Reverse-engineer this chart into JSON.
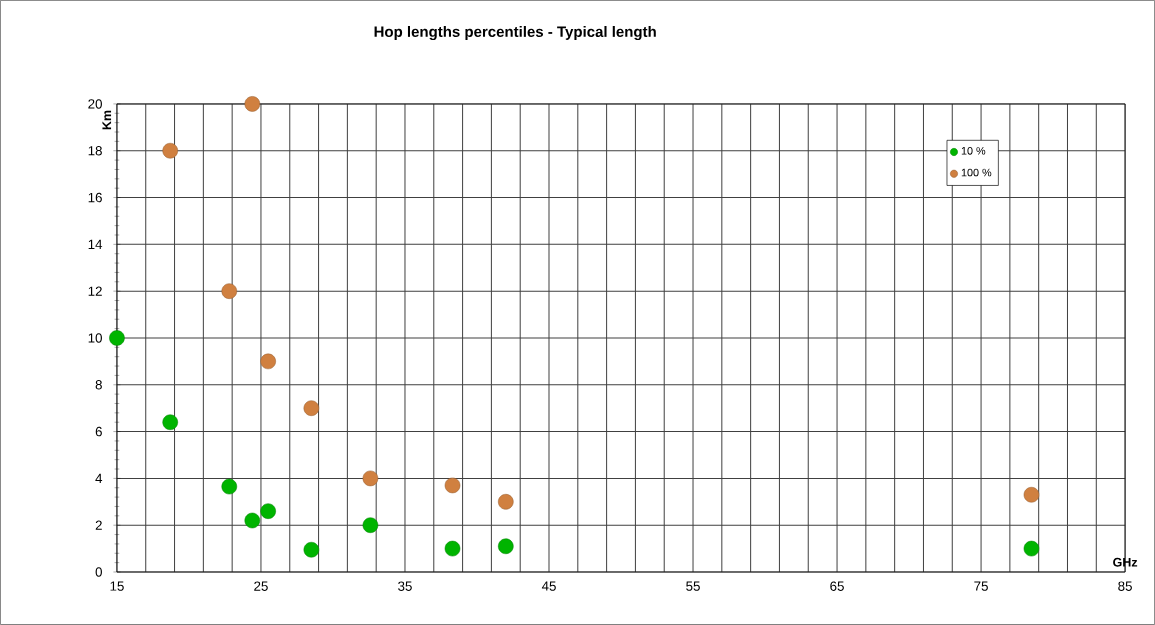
{
  "chart_data": {
    "type": "scatter",
    "title": "Hop lengths percentiles - Typical length",
    "xlabel": "GHz",
    "ylabel": "Km",
    "xlim": [
      15,
      85
    ],
    "xticks": [
      15,
      {
        "value": 17,
        "label": null
      },
      {
        "value": 19,
        "label": null
      },
      {
        "value": 21,
        "label": null
      },
      {
        "value": 23,
        "label": null
      },
      25,
      {
        "value": 27,
        "label": null
      },
      {
        "value": 29,
        "label": null
      },
      {
        "value": 31,
        "label": null
      },
      {
        "value": 33,
        "label": null
      },
      35,
      {
        "value": 37,
        "label": null
      },
      {
        "value": 39,
        "label": null
      },
      {
        "value": 41,
        "label": null
      },
      {
        "value": 43,
        "label": null
      },
      45,
      {
        "value": 47,
        "label": null
      },
      {
        "value": 49,
        "label": null
      },
      {
        "value": 51,
        "label": null
      },
      {
        "value": 53,
        "label": null
      },
      55,
      {
        "value": 57,
        "label": null
      },
      {
        "value": 59,
        "label": null
      },
      {
        "value": 61,
        "label": null
      },
      {
        "value": 63,
        "label": null
      },
      65,
      {
        "value": 67,
        "label": null
      },
      {
        "value": 69,
        "label": null
      },
      {
        "value": 71,
        "label": null
      },
      {
        "value": 73,
        "label": null
      },
      75,
      {
        "value": 77,
        "label": null
      },
      {
        "value": 79,
        "label": null
      },
      {
        "value": 81,
        "label": null
      },
      {
        "value": 83,
        "label": null
      },
      85
    ],
    "ylim": [
      0,
      20
    ],
    "yticks": [
      0,
      2,
      4,
      6,
      8,
      10,
      12,
      14,
      16,
      18,
      20
    ],
    "grid": true,
    "legend": "top right",
    "marker": "circle",
    "series": [
      {
        "name": "10 %",
        "color": "#00b400",
        "x": [
          15,
          18.7,
          22.8,
          24.4,
          25.5,
          28.5,
          32.6,
          38.3,
          42.0,
          78.5
        ],
        "values": [
          10,
          6.4,
          3.65,
          2.2,
          2.6,
          0.95,
          2.0,
          1.0,
          1.1,
          1.0
        ]
      },
      {
        "name": "100 %",
        "color": "#d08040",
        "x": [
          18.7,
          22.8,
          24.4,
          25.5,
          28.5,
          32.6,
          38.3,
          42.0,
          78.5
        ],
        "values": [
          18,
          12,
          20,
          9,
          7,
          4,
          3.7,
          3.0,
          3.3
        ]
      }
    ]
  }
}
